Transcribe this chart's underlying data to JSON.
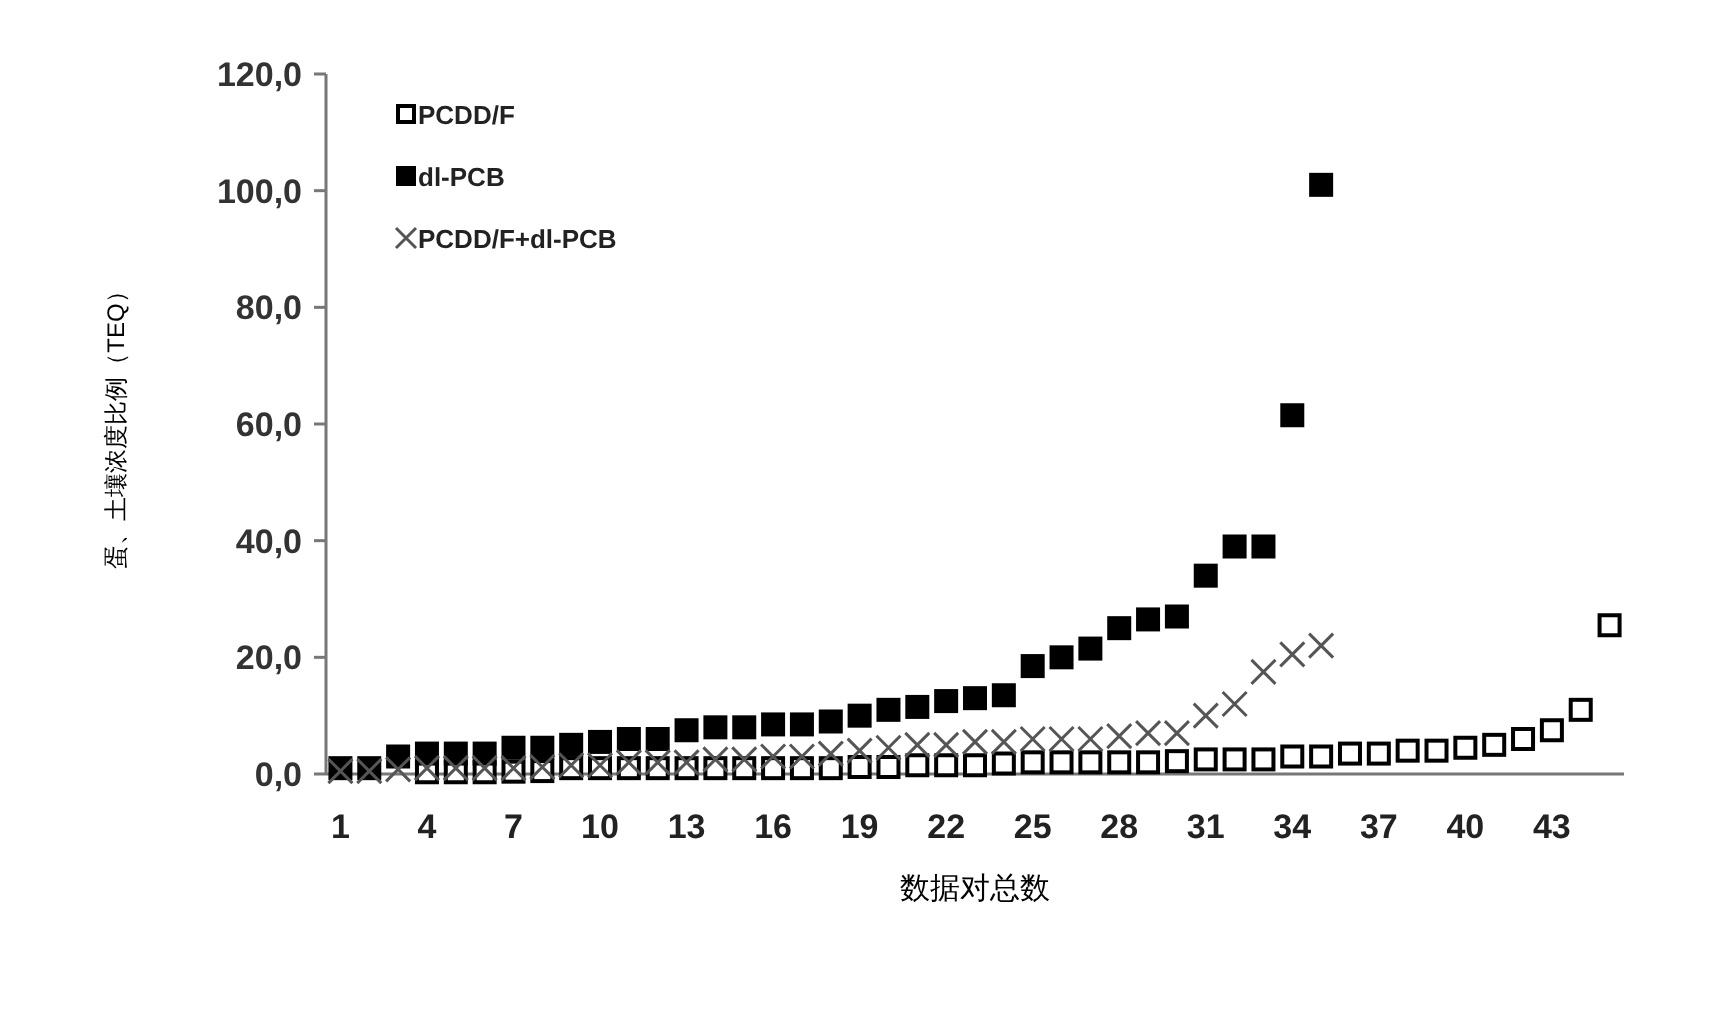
{
  "chart_data": {
    "type": "scatter",
    "xlabel": "数据对总数",
    "ylabel": "蛋、土壤浓度比例（TEQ）",
    "categories": [
      "1",
      null,
      null,
      "4",
      null,
      null,
      "7",
      null,
      null,
      "10",
      null,
      null,
      "13",
      null,
      null,
      "16",
      null,
      null,
      "19",
      null,
      null,
      "22",
      null,
      null,
      "25",
      null,
      null,
      "28",
      null,
      null,
      "31",
      null,
      null,
      "34",
      null,
      null,
      "37",
      null,
      null,
      "40",
      null,
      null,
      "43",
      null,
      null
    ],
    "ylim": [
      0,
      120
    ],
    "yticks": [
      {
        "value": 0,
        "label": "0,0"
      },
      {
        "value": 20,
        "label": "20,0"
      },
      {
        "value": 40,
        "label": "40,0"
      },
      {
        "value": 60,
        "label": "60,0"
      },
      {
        "value": 80,
        "label": "80,0"
      },
      {
        "value": 100,
        "label": "100,0"
      },
      {
        "value": 120,
        "label": "120,0"
      }
    ],
    "grid": false,
    "legend": "top left",
    "series": [
      {
        "name": "PCDD/F",
        "color": "#000000",
        "marker": "square_open",
        "values": [
          null,
          null,
          null,
          0.3,
          0.3,
          0.3,
          0.4,
          0.5,
          1,
          1,
          1,
          1,
          1,
          1,
          1,
          1,
          1,
          1,
          1.2,
          1.2,
          1.5,
          1.5,
          1.5,
          1.8,
          2,
          2,
          2,
          2,
          2,
          2.2,
          2.5,
          2.5,
          2.5,
          3,
          3,
          3.5,
          3.5,
          4,
          4,
          4.5,
          5,
          6,
          7.5,
          11,
          25.5
        ]
      },
      {
        "name": "dl-PCB",
        "color": "#000000",
        "marker": "square",
        "values": [
          1,
          1,
          3,
          3.5,
          3.5,
          3.5,
          4.5,
          4.5,
          5,
          5.5,
          6,
          6,
          7.5,
          8,
          8,
          8.5,
          8.5,
          9,
          10,
          11,
          11.5,
          12.5,
          13,
          13.5,
          18.5,
          20,
          21.5,
          25,
          26.5,
          27,
          34,
          39,
          39,
          61.5,
          101,
          null,
          null,
          null,
          null,
          null,
          null,
          null,
          null,
          null,
          null
        ]
      },
      {
        "name": "PCDD/F+dl-PCB",
        "color": "#555555",
        "marker": "cross",
        "values": [
          0.5,
          0.5,
          0.8,
          1,
          1,
          1,
          1,
          1.2,
          1.5,
          1.5,
          2,
          2,
          2,
          2.5,
          2.5,
          3,
          3,
          3.5,
          4,
          4.5,
          5,
          5,
          5.5,
          5.5,
          6,
          6,
          6,
          6.5,
          7,
          7,
          10,
          12,
          17.5,
          20.5,
          22,
          null,
          null,
          null,
          null,
          null,
          null,
          null,
          null,
          null,
          null
        ]
      }
    ]
  }
}
